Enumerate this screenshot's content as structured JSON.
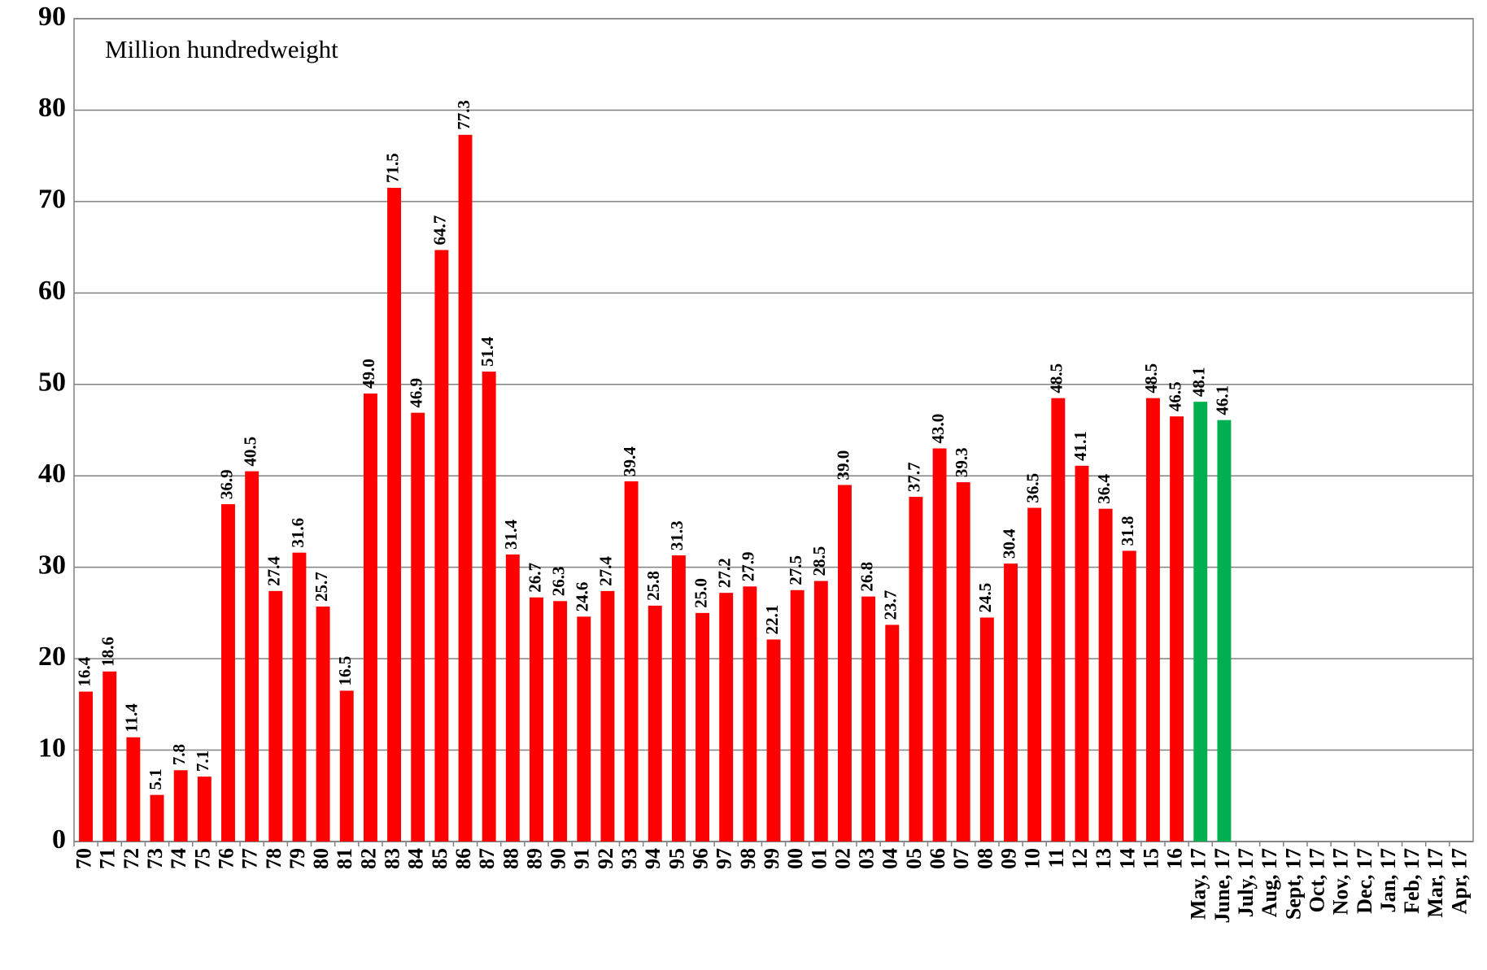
{
  "chart_data": {
    "type": "bar",
    "annotation": "Million hundredweight",
    "categories": [
      "70",
      "71",
      "72",
      "73",
      "74",
      "75",
      "76",
      "77",
      "78",
      "79",
      "80",
      "81",
      "82",
      "83",
      "84",
      "85",
      "86",
      "87",
      "88",
      "89",
      "90",
      "91",
      "92",
      "93",
      "94",
      "95",
      "96",
      "97",
      "98",
      "99",
      "00",
      "01",
      "02",
      "03",
      "04",
      "05",
      "06",
      "07",
      "08",
      "09",
      "10",
      "11",
      "12",
      "13",
      "14",
      "15",
      "16",
      "May, 17",
      "June, 17",
      "July, 17",
      "Aug, 17",
      "Sept, 17",
      "Oct, 17",
      "Nov, 17",
      "Dec, 17",
      "Jan, 17",
      "Feb, 17",
      "Mar, 17",
      "Apr, 17"
    ],
    "values": [
      16.4,
      18.6,
      11.4,
      5.1,
      7.8,
      7.1,
      36.9,
      40.5,
      27.4,
      31.6,
      25.7,
      16.5,
      49.0,
      71.5,
      46.9,
      64.7,
      77.3,
      51.4,
      31.4,
      26.7,
      26.3,
      24.6,
      27.4,
      39.4,
      25.8,
      31.3,
      25.0,
      27.2,
      27.9,
      22.1,
      27.5,
      28.5,
      39.0,
      26.8,
      23.7,
      37.7,
      43.0,
      39.3,
      24.5,
      30.4,
      36.5,
      48.5,
      41.1,
      36.4,
      31.8,
      48.5,
      46.5,
      48.1,
      46.1,
      null,
      null,
      null,
      null,
      null,
      null,
      null,
      null,
      null,
      null
    ],
    "value_labels": [
      "16.4",
      "18.6",
      "11.4",
      "5.1",
      "7.8",
      "7.1",
      "36.9",
      "40.5",
      "27.4",
      "31.6",
      "25.7",
      "16.5",
      "49.0",
      "71.5",
      "46.9",
      "64.7",
      "77.3",
      "51.4",
      "31.4",
      "26.7",
      "26.3",
      "24.6",
      "27.4",
      "39.4",
      "25.8",
      "31.3",
      "25.0",
      "27.2",
      "27.9",
      "22.1",
      "27.5",
      "28.5",
      "39.0",
      "26.8",
      "23.7",
      "37.7",
      "43.0",
      "39.3",
      "24.5",
      "30.4",
      "36.5",
      "48.5",
      "41.1",
      "36.4",
      "31.8",
      "48.5",
      "46.5",
      "48.1",
      "46.1",
      null,
      null,
      null,
      null,
      null,
      null,
      null,
      null,
      null,
      null
    ],
    "colors": [
      "#ff0000",
      "#ff0000",
      "#ff0000",
      "#ff0000",
      "#ff0000",
      "#ff0000",
      "#ff0000",
      "#ff0000",
      "#ff0000",
      "#ff0000",
      "#ff0000",
      "#ff0000",
      "#ff0000",
      "#ff0000",
      "#ff0000",
      "#ff0000",
      "#ff0000",
      "#ff0000",
      "#ff0000",
      "#ff0000",
      "#ff0000",
      "#ff0000",
      "#ff0000",
      "#ff0000",
      "#ff0000",
      "#ff0000",
      "#ff0000",
      "#ff0000",
      "#ff0000",
      "#ff0000",
      "#ff0000",
      "#ff0000",
      "#ff0000",
      "#ff0000",
      "#ff0000",
      "#ff0000",
      "#ff0000",
      "#ff0000",
      "#ff0000",
      "#ff0000",
      "#ff0000",
      "#ff0000",
      "#ff0000",
      "#ff0000",
      "#ff0000",
      "#ff0000",
      "#ff0000",
      "#00b050",
      "#00b050",
      null,
      null,
      null,
      null,
      null,
      null,
      null,
      null,
      null,
      null
    ],
    "ylim": [
      0,
      90
    ],
    "yticks": [
      0,
      10,
      20,
      30,
      40,
      50,
      60,
      70,
      80,
      90
    ],
    "grid": true
  }
}
